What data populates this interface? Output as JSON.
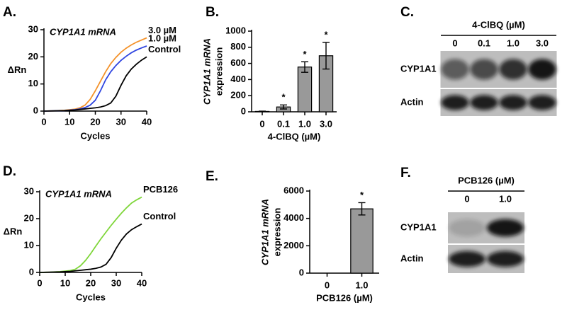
{
  "chart_data": [
    {
      "type": "line",
      "panel": "A.",
      "title": "CYP1A1 mRNA",
      "xlabel": "Cycles",
      "ylabel": "ΔRn",
      "x": [
        0,
        4,
        8,
        12,
        14,
        16,
        18,
        20,
        22,
        24,
        26,
        28,
        30,
        32,
        34,
        36,
        38,
        40
      ],
      "series": [
        {
          "name": "3.0 µM",
          "color": "#f4922a",
          "values": [
            0,
            0.1,
            0.3,
            0.7,
            1.2,
            2.2,
            4.3,
            7.5,
            11,
            14.5,
            17.5,
            19.8,
            21.7,
            23.2,
            24.4,
            25.4,
            26.2,
            27
          ]
        },
        {
          "name": "1.0 µM",
          "color": "#2f45e0",
          "values": [
            0,
            0.1,
            0.2,
            0.5,
            0.8,
            1.3,
            2.2,
            4,
            7.5,
            11.5,
            14.5,
            16.8,
            18.7,
            20.2,
            21.5,
            22.5,
            23.3,
            24
          ]
        },
        {
          "name": "Control",
          "color": "#000000",
          "values": [
            0,
            0.1,
            0.2,
            0.4,
            0.6,
            0.8,
            1,
            1.2,
            1.5,
            2,
            3,
            5.5,
            9.5,
            13,
            15.5,
            17.3,
            18.8,
            20
          ]
        }
      ],
      "xlim": [
        0,
        40
      ],
      "xticks": [
        0,
        10,
        20,
        30,
        40
      ],
      "ylim": [
        0,
        30
      ],
      "yticks": [
        0,
        10,
        20,
        30
      ]
    },
    {
      "type": "bar",
      "panel": "B.",
      "ylabel": [
        "CYP1A1 mRNA",
        "expression"
      ],
      "xlabel": "4-ClBQ (µM)",
      "categories": [
        "0",
        "0.1",
        "1.0",
        "3.0"
      ],
      "values": [
        5,
        60,
        555,
        695
      ],
      "errors": [
        3,
        25,
        65,
        165
      ],
      "significance": [
        null,
        "*",
        "*",
        "*"
      ],
      "color": "#999999",
      "ylim": [
        0,
        1000
      ],
      "yticks": [
        0,
        200,
        400,
        600,
        800,
        1000
      ]
    },
    {
      "type": "line",
      "panel": "D.",
      "title": "CYP1A1 mRNA",
      "xlabel": "Cycles",
      "ylabel": "ΔRn",
      "x": [
        0,
        4,
        8,
        12,
        14,
        16,
        18,
        20,
        22,
        24,
        26,
        28,
        30,
        32,
        34,
        36,
        38,
        40
      ],
      "series": [
        {
          "name": "PCB126",
          "color": "#7fd63a",
          "values": [
            0,
            0.1,
            0.3,
            0.7,
            1.2,
            2.5,
            4.5,
            7,
            9.8,
            12.5,
            15,
            17.5,
            19.8,
            22,
            24,
            25.8,
            27,
            28
          ]
        },
        {
          "name": "Control",
          "color": "#000000",
          "values": [
            0,
            0.1,
            0.2,
            0.4,
            0.6,
            0.8,
            1,
            1.2,
            1.5,
            2,
            3,
            5.5,
            9,
            12,
            14.3,
            15.9,
            17,
            18
          ]
        }
      ],
      "xlim": [
        0,
        40
      ],
      "xticks": [
        0,
        10,
        20,
        30,
        40
      ],
      "ylim": [
        0,
        30
      ],
      "yticks": [
        0,
        10,
        20,
        30
      ]
    },
    {
      "type": "bar",
      "panel": "E.",
      "ylabel": [
        "CYP1A1 mRNA",
        "expression"
      ],
      "xlabel": "PCB126 (µM)",
      "categories": [
        "0",
        "1.0"
      ],
      "values": [
        0,
        4700
      ],
      "errors": [
        0,
        450
      ],
      "significance": [
        null,
        "*"
      ],
      "color": "#999999",
      "ylim": [
        0,
        6000
      ],
      "yticks": [
        0,
        2000,
        4000,
        6000
      ]
    }
  ],
  "blots": [
    {
      "panel": "C.",
      "title": "4-ClBQ (µM)",
      "lanes": [
        "0",
        "0.1",
        "1.0",
        "3.0"
      ],
      "rows": [
        "CYP1A1",
        "Actin"
      ]
    },
    {
      "panel": "F.",
      "title": "PCB126 (µM)",
      "lanes": [
        "0",
        "1.0"
      ],
      "rows": [
        "CYP1A1",
        "Actin"
      ]
    }
  ]
}
